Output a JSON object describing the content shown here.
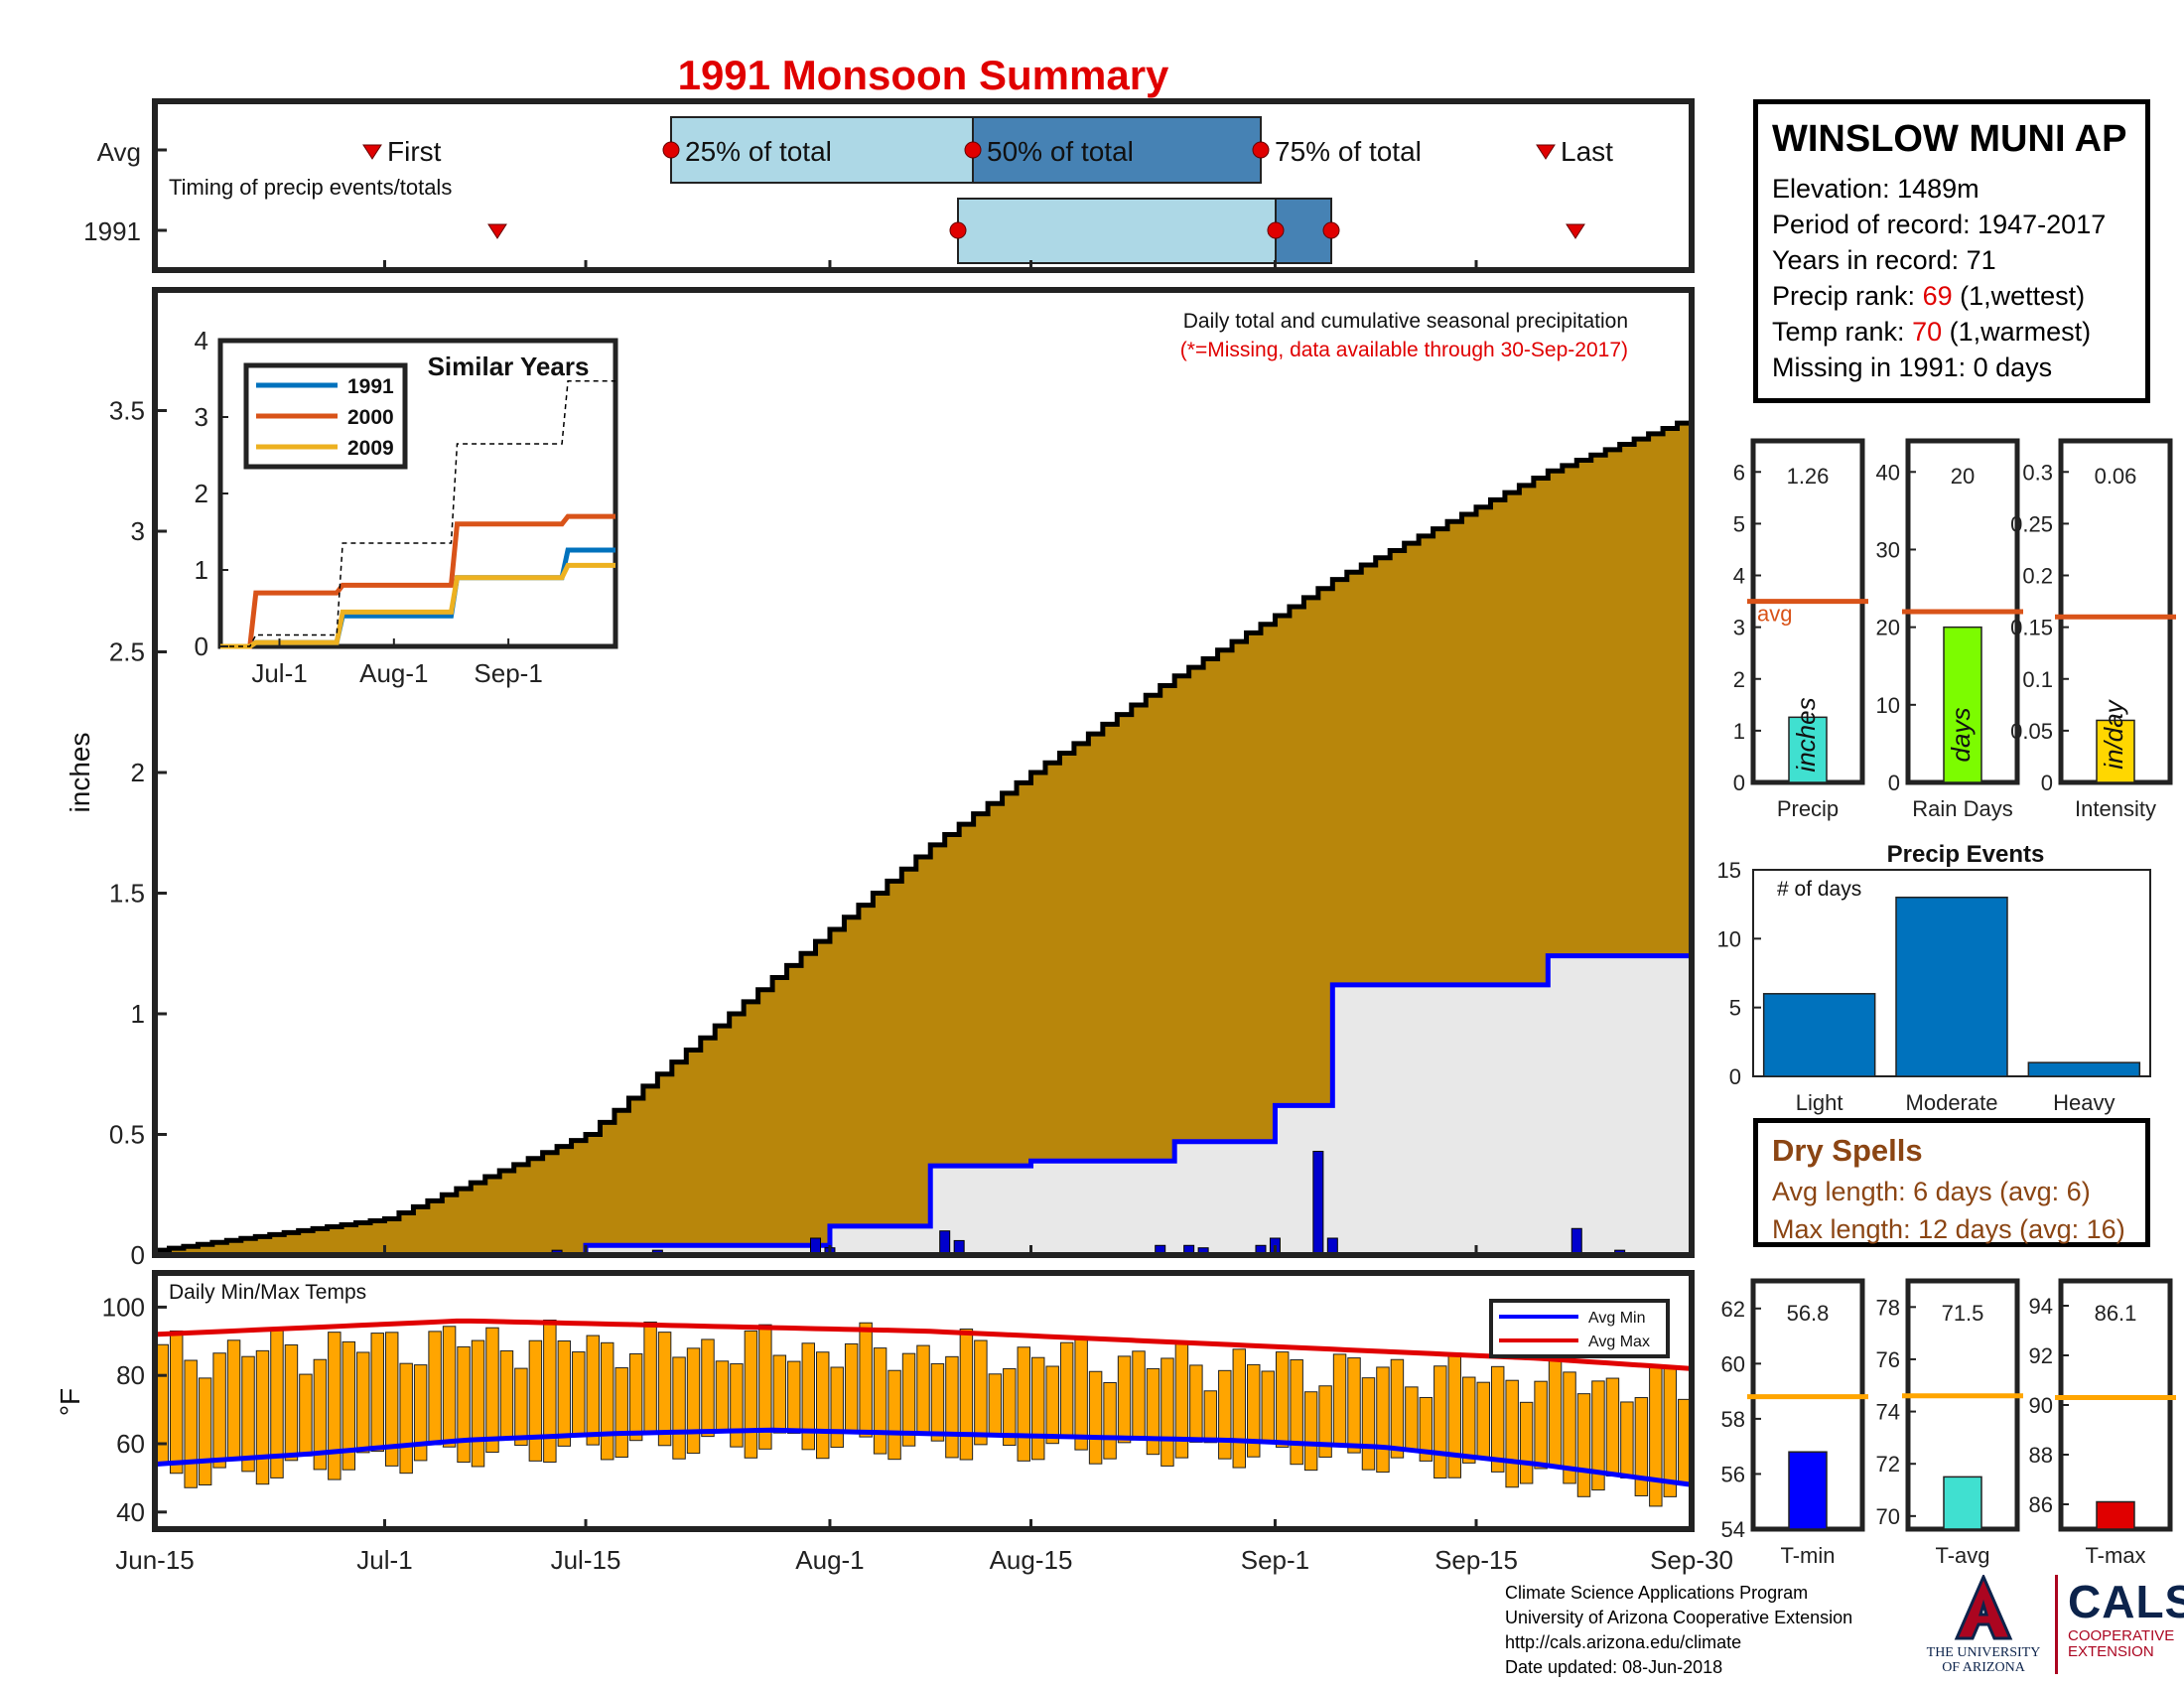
{
  "header": {
    "title": "1991 Monsoon Summary",
    "timing_label": "Timing of precip events/totals",
    "row_avg_label": "Avg",
    "row_year_label": "1991",
    "marker_first": "First",
    "marker_last": "Last",
    "pct25": "25% of total",
    "pct50": "50% of total",
    "pct75": "75% of total"
  },
  "station": {
    "name": "WINSLOW MUNI AP",
    "elevation": "Elevation: 1489m",
    "period": "Period of record: 1947-2017",
    "years": "Years in record: 71",
    "precip_rank_label": "Precip rank: ",
    "precip_rank_value": "69",
    "precip_rank_note": " (1,wettest)",
    "temp_rank_label": "Temp rank: ",
    "temp_rank_value": "70",
    "temp_rank_note": " (1,warmest)",
    "missing": "Missing in 1991: 0 days"
  },
  "main_chart": {
    "title_line1": "Daily total and cumulative seasonal precipitation",
    "title_line2": "(*=Missing, data available through 30-Sep-2017)",
    "ylabel": "inches",
    "xticks": [
      "Jun-15",
      "Jul-1",
      "Jul-15",
      "Aug-1",
      "Aug-15",
      "Sep-1",
      "Sep-15",
      "Sep-30"
    ],
    "yticks": [
      "0",
      "0.5",
      "1",
      "1.5",
      "2",
      "2.5",
      "3",
      "3.5"
    ]
  },
  "inset": {
    "title": "Similar Years",
    "xticks": [
      "Jul-1",
      "Aug-1",
      "Sep-1"
    ],
    "yticks": [
      "0",
      "1",
      "2",
      "3",
      "4"
    ],
    "legend": [
      "1991",
      "2000",
      "2009"
    ]
  },
  "temp_chart": {
    "title": "Daily Min/Max Temps",
    "ylabel": "°F",
    "yticks": [
      "40",
      "60",
      "80",
      "100"
    ],
    "legend_min": "Avg Min",
    "legend_max": "Avg Max"
  },
  "bars": {
    "precip_value": "1.26",
    "raindays_value": "20",
    "intensity_value": "0.06",
    "precip_label": "Precip",
    "raindays_label": "Rain Days",
    "intensity_label": "Intensity",
    "precip_unit": "inches",
    "raindays_unit": "days",
    "intensity_unit": "in/day",
    "avg_label": "avg"
  },
  "events": {
    "title": "Precip Events",
    "ylabel": "# of days",
    "categories": [
      "Light",
      "Moderate",
      "Heavy"
    ]
  },
  "dry_spells": {
    "title": "Dry Spells",
    "avg_length": "Avg length: 6 days (avg: 6)",
    "max_length": "Max length: 12 days (avg: 16)"
  },
  "temp_bars": {
    "tmin_value": "56.8",
    "tavg_value": "71.5",
    "tmax_value": "86.1",
    "tmin_label": "T-min",
    "tavg_label": "T-avg",
    "tmax_label": "T-max"
  },
  "credits": {
    "line1": "Climate Science Applications Program",
    "line2": "University of Arizona Cooperative Extension",
    "line3": "http://cals.arizona.edu/climate",
    "line4": " Date updated: 08-Jun-2018",
    "ua_name": "THE UNIVERSITY OF ARIZONA",
    "cals": "CALS",
    "cals_sub1": "COOPERATIVE",
    "cals_sub2": "EXTENSION"
  },
  "colors": {
    "title_red": "#e00000",
    "cumulative_avg_fill": "#b8860b",
    "year_fill": "#e8e8e8",
    "year_line": "#0000ff",
    "temp_bar": "#ffa500",
    "avg_line": "#d95319"
  },
  "chart_data": [
    {
      "type": "area",
      "name": "cumulative_precip",
      "x": [
        "Jun-15",
        "Jul-1",
        "Jul-15",
        "Aug-1",
        "Aug-8",
        "Aug-15",
        "Aug-25",
        "Sep-1",
        "Sep-5",
        "Sep-15",
        "Sep-20",
        "Sep-30"
      ],
      "series": [
        {
          "name": "avg",
          "values": [
            0.02,
            0.15,
            0.5,
            1.35,
            1.7,
            2.0,
            2.4,
            2.65,
            2.8,
            3.1,
            3.25,
            3.47
          ]
        },
        {
          "name": "1991",
          "values": [
            0.0,
            0.0,
            0.04,
            0.12,
            0.37,
            0.39,
            0.47,
            0.62,
            1.12,
            1.12,
            1.24,
            1.26
          ]
        }
      ],
      "daily_bars": [
        {
          "x": "Jul-13",
          "value": 0.02
        },
        {
          "x": "Jul-20",
          "value": 0.02
        },
        {
          "x": "Jul-31",
          "value": 0.07
        },
        {
          "x": "Aug-1",
          "value": 0.03
        },
        {
          "x": "Aug-9",
          "value": 0.1
        },
        {
          "x": "Aug-10",
          "value": 0.06
        },
        {
          "x": "Aug-24",
          "value": 0.04
        },
        {
          "x": "Aug-26",
          "value": 0.04
        },
        {
          "x": "Aug-27",
          "value": 0.03
        },
        {
          "x": "Aug-31",
          "value": 0.04
        },
        {
          "x": "Sep-1",
          "value": 0.07
        },
        {
          "x": "Sep-4",
          "value": 0.43
        },
        {
          "x": "Sep-5",
          "value": 0.07
        },
        {
          "x": "Sep-22",
          "value": 0.11
        },
        {
          "x": "Sep-25",
          "value": 0.02
        }
      ],
      "ylabel": "inches",
      "ylim": [
        0,
        4
      ]
    },
    {
      "type": "line",
      "name": "similar_years_inset",
      "x": [
        "Jun-15",
        "Jul-1",
        "Aug-1",
        "Sep-1",
        "Sep-30"
      ],
      "series": [
        {
          "name": "1991",
          "values": [
            0,
            0.05,
            0.4,
            0.9,
            1.26
          ]
        },
        {
          "name": "2000",
          "values": [
            0,
            0.7,
            0.8,
            1.6,
            1.7
          ]
        },
        {
          "name": "2009",
          "values": [
            0,
            0.05,
            0.45,
            0.9,
            1.06
          ]
        },
        {
          "name": "avg",
          "values": [
            0,
            0.15,
            1.35,
            2.65,
            3.47
          ]
        }
      ],
      "ylim": [
        0,
        4
      ]
    },
    {
      "type": "bar",
      "name": "daily_temps",
      "avg_max": [
        92,
        94,
        96,
        95,
        94,
        93,
        91,
        89,
        87,
        85,
        82
      ],
      "avg_min": [
        54,
        57,
        61,
        63,
        64,
        63,
        62,
        61,
        59,
        54,
        48
      ],
      "ylim": [
        35,
        110
      ],
      "ylabel": "°F"
    },
    {
      "type": "bar",
      "name": "season_totals",
      "categories": [
        "Precip",
        "Rain Days",
        "Intensity"
      ],
      "values": [
        1.26,
        20,
        0.06
      ],
      "averages": [
        3.5,
        22,
        0.16
      ]
    },
    {
      "type": "bar",
      "name": "precip_events",
      "categories": [
        "Light",
        "Moderate",
        "Heavy"
      ],
      "values": [
        6,
        13,
        1
      ],
      "ylim": [
        0,
        15
      ]
    },
    {
      "type": "bar",
      "name": "temp_totals",
      "categories": [
        "T-min",
        "T-avg",
        "T-max"
      ],
      "values": [
        56.8,
        71.5,
        86.1
      ],
      "averages": [
        58.8,
        74.6,
        90.3
      ]
    }
  ]
}
